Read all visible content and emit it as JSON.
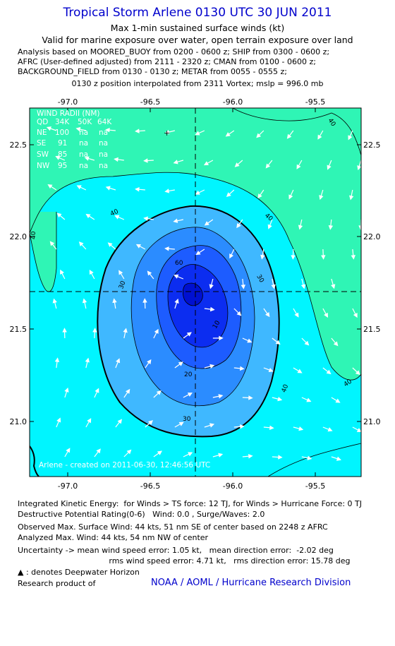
{
  "header": {
    "title": "Tropical Storm Arlene 0130 UTC 30 JUN 2011",
    "subtitle1": "Max 1-min sustained surface winds (kt)",
    "subtitle2": "Valid for marine exposure over water, open terrain exposure over land",
    "analysis_lines": [
      "Analysis based on MOORED_BUOY from 0200 - 0600 z; SHIP from 0300 - 0600 z;",
      "AFRC (User-defined adjusted) from 2111 - 2320 z; CMAN from 0100 - 0600 z;",
      "BACKGROUND_FIELD from 0130 - 0130 z; METAR from 0055 - 0555 z;"
    ],
    "position_note": "0130 z position interpolated from 2311 Vortex; mslp = 996.0 mb"
  },
  "map": {
    "lon_ticks": [
      "-97.0",
      "-96.5",
      "-96.0",
      "-95.5"
    ],
    "lat_ticks": [
      "22.5",
      "22.0",
      "21.5",
      "21.0"
    ],
    "contour_labels": [
      "40",
      "40",
      "40",
      "40",
      "40",
      "40",
      "30",
      "30",
      "30",
      "20",
      "10",
      "60"
    ],
    "wind_radii": {
      "title": "WIND RADII (NM)",
      "header": [
        "QD",
        "34K",
        "50K",
        "64K"
      ],
      "rows": [
        [
          "NE",
          "100",
          "na",
          "na"
        ],
        [
          "SE",
          "91",
          "na",
          "na"
        ],
        [
          "SW",
          "85",
          "na",
          "na"
        ],
        [
          "NW",
          "95",
          "na",
          "na"
        ]
      ]
    },
    "credit": "Arlene - created on 2011-06-30, 12:46:56 UTC",
    "colors": {
      "band_40_plus": "#2ff5b5",
      "band_30_40": "#00f5ff",
      "band_20_30": "#3fb8ff",
      "band_10_20": "#2b8cff",
      "band_60": "#1d5cff",
      "band_core": "#0c2df0",
      "eye": "#0010d0"
    }
  },
  "footer": {
    "ike": "Integrated Kinetic Energy:  for Winds > TS force: 12 TJ, for Winds > Hurricane Force: 0 TJ",
    "dpr": "Destructive Potential Rating(0-6)   Wind: 0.0 , Surge/Waves: 2.0",
    "obs_max": "Observed Max. Surface Wind: 44 kts, 51 nm SE of center based on 2248 z AFRC",
    "ana_max": "Analyzed Max. Wind: 44 kts, 54 nm NW of center",
    "unc1": "Uncertainty -> mean wind speed error: 1.05 kt,   mean direction error:  -2.02 deg",
    "unc2": "                                     rms wind speed error: 4.71 kt,   rms direction error: 15.78 deg",
    "legend": " : denotes Deepwater Horizon",
    "research": "Research product of",
    "org": "NOAA / AOML / Hurricane Research Division"
  }
}
